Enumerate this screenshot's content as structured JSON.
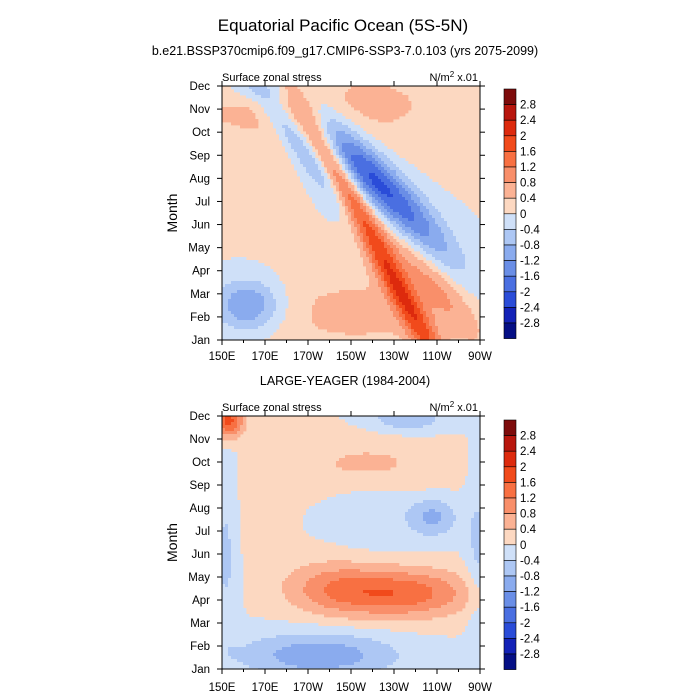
{
  "figure": {
    "title": "Equatorial Pacific Ocean (5S-5N)"
  },
  "chart_data": [
    {
      "type": "heatmap",
      "title": "b.e21.BSSP370cmip6.f09_g17.CMIP6-SSP3-7.0.103 (yrs 2075-2099)",
      "left_label": "Surface zonal stress",
      "units_label": "N/m",
      "units_exponent": "2",
      "units_scale": " x.01",
      "ylabel": "Month",
      "xlabel": "",
      "y_ticks": [
        "Jan",
        "Feb",
        "Mar",
        "Apr",
        "May",
        "Jun",
        "Jul",
        "Aug",
        "Sep",
        "Oct",
        "Nov",
        "Dec"
      ],
      "x_ticks": [
        "150E",
        "170E",
        "170W",
        "150W",
        "130W",
        "110W",
        "90W"
      ],
      "x_tick_values": [
        150,
        170,
        190,
        210,
        230,
        250,
        270
      ],
      "xlim": [
        150,
        270
      ],
      "ylim": [
        1,
        12
      ],
      "colorbar_levels": [
        2.8,
        2.4,
        2,
        1.6,
        1.2,
        0.8,
        0.4,
        0,
        -0.4,
        -0.8,
        -1.2,
        -1.6,
        -2,
        -2.4,
        -2.8
      ],
      "field_features": [
        {
          "kind": "positive",
          "month": 5,
          "lon": 222,
          "peak": 1.9,
          "sm": 0.85,
          "sl": 32,
          "tilt": -17,
          "label": "positive band sloping from Jun near 150E to Apr near 110W"
        },
        {
          "kind": "positive",
          "month": 4.0,
          "lon": 243,
          "peak": 0.8,
          "sm": 0.9,
          "sl": 18,
          "tilt": -10,
          "label": "positive tail toward Mar near 110W"
        },
        {
          "kind": "positive",
          "month": 11.2,
          "lon": 190,
          "peak": 0.55,
          "sm": 1.6,
          "sl": 60,
          "tilt": 0,
          "label": "weak positive Oct-Dec"
        },
        {
          "kind": "positive",
          "month": 2.2,
          "lon": 212,
          "peak": 0.5,
          "sm": 1.4,
          "sl": 40,
          "tilt": 0,
          "label": "weak positive Jan-Mar central"
        },
        {
          "kind": "negative",
          "month": 7.8,
          "lon": 222,
          "peak": -2.2,
          "sm": 0.95,
          "sl": 24,
          "tilt": -9,
          "label": "negative core Jul-Aug near 140W"
        },
        {
          "kind": "negative",
          "month": 8.9,
          "lon": 190,
          "peak": -0.9,
          "sm": 0.6,
          "sl": 20,
          "tilt": -12,
          "label": "negative arm Sep near 170W"
        },
        {
          "kind": "negative",
          "month": 2.5,
          "lon": 162,
          "peak": -1.4,
          "sm": 0.8,
          "sl": 11,
          "tilt": 0,
          "label": "negative pocket Feb-Mar near 160E"
        },
        {
          "kind": "negative",
          "month": 11.9,
          "lon": 168,
          "peak": -0.5,
          "sm": 0.4,
          "sl": 20,
          "tilt": 0,
          "label": "weak negative Dec near 160E"
        }
      ]
    },
    {
      "type": "heatmap",
      "title": "LARGE-YEAGER (1984-2004)",
      "left_label": "Surface zonal stress",
      "units_label": "N/m",
      "units_exponent": "2",
      "units_scale": " x.01",
      "ylabel": "Month",
      "xlabel": "",
      "y_ticks": [
        "Jan",
        "Feb",
        "Mar",
        "Apr",
        "May",
        "Jun",
        "Jul",
        "Aug",
        "Sep",
        "Oct",
        "Nov",
        "Dec"
      ],
      "x_ticks": [
        "150E",
        "170E",
        "170W",
        "150W",
        "130W",
        "110W",
        "90W"
      ],
      "x_tick_values": [
        150,
        170,
        190,
        210,
        230,
        250,
        270
      ],
      "xlim": [
        150,
        270
      ],
      "ylim": [
        1,
        12
      ],
      "colorbar_levels": [
        2.8,
        2.4,
        2,
        1.6,
        1.2,
        0.8,
        0.4,
        0,
        -0.4,
        -0.8,
        -1.2,
        -1.6,
        -2,
        -2.4,
        -2.8
      ],
      "field_features": [
        {
          "kind": "positive",
          "month": 4.3,
          "lon": 232,
          "peak": 1.5,
          "sm": 0.75,
          "sl": 24,
          "tilt": 0,
          "label": "positive Apr-May centered 130W"
        },
        {
          "kind": "positive",
          "month": 4.6,
          "lon": 200,
          "peak": 0.7,
          "sm": 0.85,
          "sl": 16,
          "tilt": 0,
          "label": "positive Apr-May near 170W"
        },
        {
          "kind": "positive",
          "month": 9.8,
          "lon": 218,
          "peak": 0.55,
          "sm": 0.9,
          "sl": 24,
          "tilt": 0,
          "label": "weak positive Sep-Oct"
        },
        {
          "kind": "positive",
          "month": 11.8,
          "lon": 153,
          "peak": 1.8,
          "sm": 0.5,
          "sl": 5,
          "tilt": 0,
          "label": "positive Dec near 150E"
        },
        {
          "kind": "positive",
          "month": 7.5,
          "lon": 168,
          "peak": 0.3,
          "sm": 1.5,
          "sl": 8,
          "tilt": 0,
          "label": "weak positive mid-year 165E"
        },
        {
          "kind": "negative",
          "month": 1.6,
          "lon": 195,
          "peak": -1.1,
          "sm": 0.7,
          "sl": 26,
          "tilt": 0,
          "label": "negative Jan-Feb central"
        },
        {
          "kind": "negative",
          "month": 7.6,
          "lon": 248,
          "peak": -0.9,
          "sm": 0.6,
          "sl": 8,
          "tilt": 0,
          "label": "negative Jul-Aug near 100W"
        },
        {
          "kind": "negative",
          "month": 11.9,
          "lon": 236,
          "peak": -0.8,
          "sm": 0.4,
          "sl": 12,
          "tilt": 0,
          "label": "negative Dec near 120W"
        },
        {
          "kind": "negative",
          "month": 8.0,
          "lon": 219,
          "peak": -0.35,
          "sm": 1.2,
          "sl": 14,
          "tilt": 0,
          "label": "weak negative Jul-Sep near 140W"
        },
        {
          "kind": "negative",
          "month": 6.0,
          "lon": 152,
          "peak": -0.5,
          "sm": 2.5,
          "sl": 4,
          "tilt": 0,
          "label": "weak negative along 150E"
        },
        {
          "kind": "negative",
          "month": 6.0,
          "lon": 269,
          "peak": -0.5,
          "sm": 2.5,
          "sl": 4,
          "tilt": 0,
          "label": "weak negative along 90W"
        }
      ]
    }
  ],
  "colorbar_colors": [
    "#7d0b0b",
    "#b8160d",
    "#dd2a0d",
    "#f14a1b",
    "#f87042",
    "#f98f6a",
    "#fbb294",
    "#fcd8c1",
    "#cfe0f8",
    "#adc7f4",
    "#8aabee",
    "#6a8ee6",
    "#4a6fe1",
    "#2a4cd8",
    "#1322b7",
    "#050f85"
  ]
}
